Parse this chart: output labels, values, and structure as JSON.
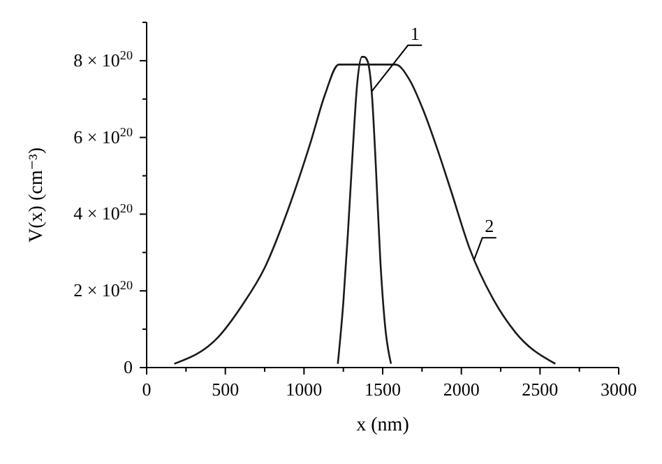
{
  "chart_data": {
    "type": "line",
    "xlabel": "x (nm)",
    "ylabel": "V(x) (cm⁻³)",
    "xlim": [
      0,
      3000
    ],
    "ylim": [
      0,
      9e+20
    ],
    "xticks": [
      0,
      {
        "value": 250,
        "label": null
      },
      500,
      {
        "value": 750,
        "label": null
      },
      1000,
      {
        "value": 1250,
        "label": null
      },
      1500,
      {
        "value": 1750,
        "label": null
      },
      2000,
      {
        "value": 2250,
        "label": null
      },
      2500,
      {
        "value": 2750,
        "label": null
      },
      3000
    ],
    "yticks": [
      0,
      {
        "value": 1e+20,
        "label": null
      },
      {
        "value": 2e+20,
        "label": "2 × 10$^{20}$"
      },
      {
        "value": 3e+20,
        "label": null
      },
      {
        "value": 4e+20,
        "label": "4 × 10$^{20}$"
      },
      {
        "value": 5e+20,
        "label": null
      },
      {
        "value": 6e+20,
        "label": "6 × 10$^{20}$"
      },
      {
        "value": 7e+20,
        "label": null
      },
      {
        "value": 8e+20,
        "label": "8 × 10$^{20}$"
      },
      {
        "value": 9e+20,
        "label": null
      }
    ],
    "grid": false,
    "line_style": "solid",
    "series": [
      {
        "color": "#1a1a1a",
        "x": [
          1215,
          1250,
          1279,
          1309,
          1338,
          1368,
          1382,
          1403,
          1432,
          1456,
          1485,
          1515,
          1553
        ],
        "values": [
          1e+19,
          1.7e+20,
          3.5e+20,
          5.6e+20,
          7.4e+20,
          8.1e+20,
          8.1e+20,
          8e+20,
          7.1e+20,
          5.3e+20,
          2.8e+20,
          1.1e+20,
          1e+19
        ]
      },
      {
        "color": "#1a1a1a",
        "x": [
          176,
          456,
          603,
          750,
          897,
          1044,
          1132,
          1221,
          1338,
          1465,
          1524,
          1582,
          1671,
          1759,
          1847,
          1935,
          2053,
          2200,
          2347,
          2597
        ],
        "values": [
          1e+19,
          8e+19,
          1.6e+20,
          2.6e+20,
          4.1e+20,
          5.9e+20,
          7.1e+20,
          7.9e+20,
          7.9e+20,
          7.9e+20,
          7.9e+20,
          7.9e+20,
          7.5e+20,
          6.7e+20,
          5.7e+20,
          4.6e+20,
          3.1e+20,
          1.8e+20,
          9e+19,
          1e+19
        ]
      }
    ],
    "annotations": [
      {
        "text": "1",
        "x": 1430,
        "y": 7.2e+20
      },
      {
        "text": "2",
        "x": 2080,
        "y": 2.8e+20
      }
    ]
  }
}
